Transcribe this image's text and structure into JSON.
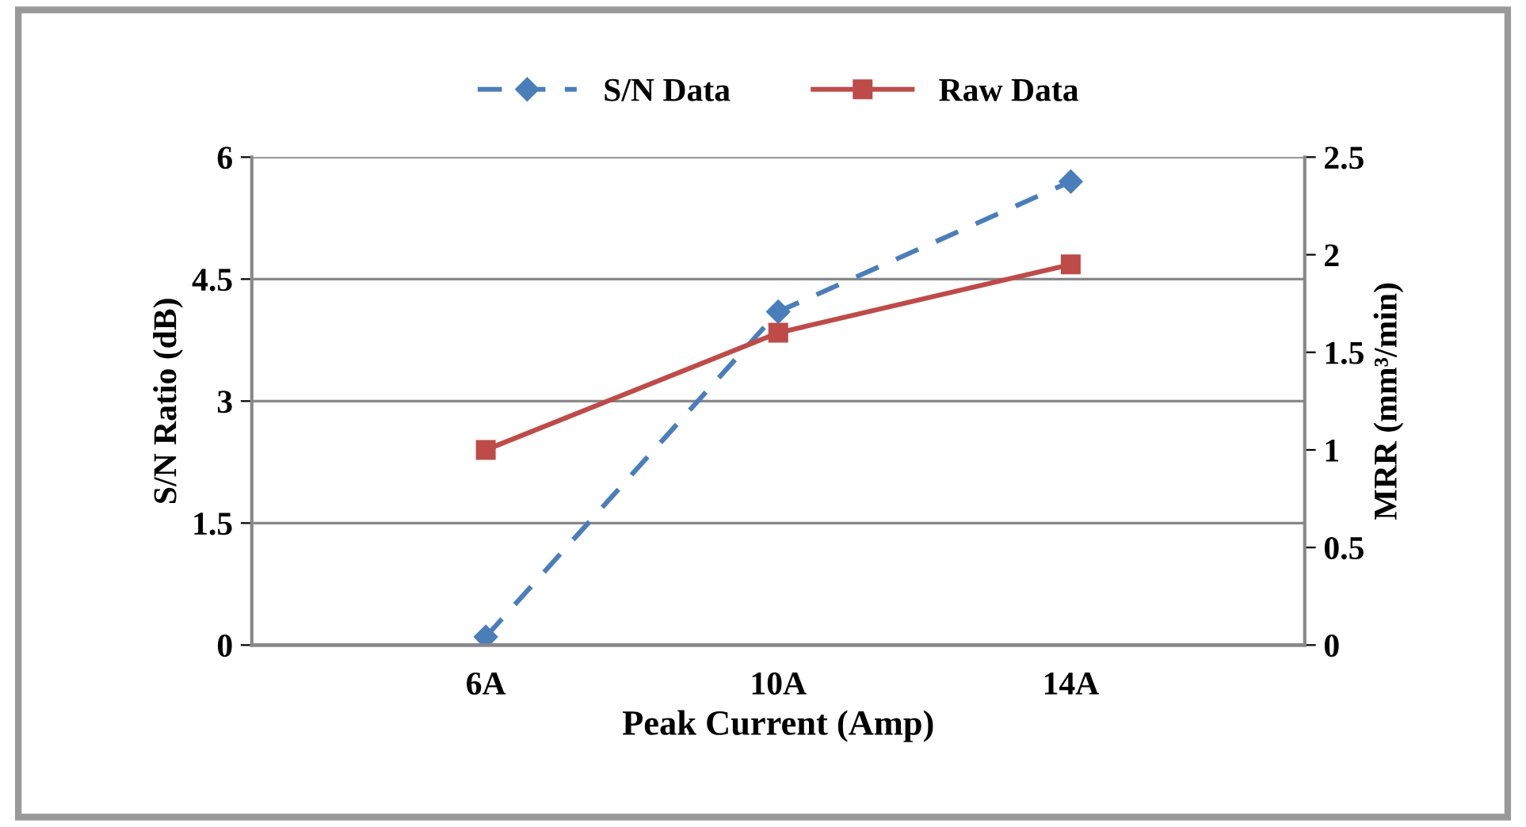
{
  "chart_data": {
    "type": "line",
    "xlabel": "Peak Current (Amp)",
    "ylabel": "S/N Ratio (dB)",
    "y2label": "MRR (mm³/min)",
    "categories": [
      "6A",
      "10A",
      "14A"
    ],
    "series": [
      {
        "name": "S/N Data",
        "color": "#4a7ebb",
        "values": [
          0.1,
          4.1,
          5.7
        ],
        "marker": "diamond",
        "line_style": "dashed"
      },
      {
        "name": "Raw Data",
        "color": "#be4b48",
        "values": [
          1.0,
          1.6,
          1.95
        ],
        "marker": "square",
        "line_style": "solid",
        "axis": "y2"
      }
    ],
    "ylim": [
      0,
      6
    ],
    "yticks": [
      0,
      1.5,
      3,
      4.5,
      6
    ],
    "y2lim": [
      0,
      2.5
    ],
    "y2ticks": [
      0,
      0.5,
      1,
      1.5,
      2,
      2.5
    ],
    "grid": "y",
    "legend": "top"
  }
}
